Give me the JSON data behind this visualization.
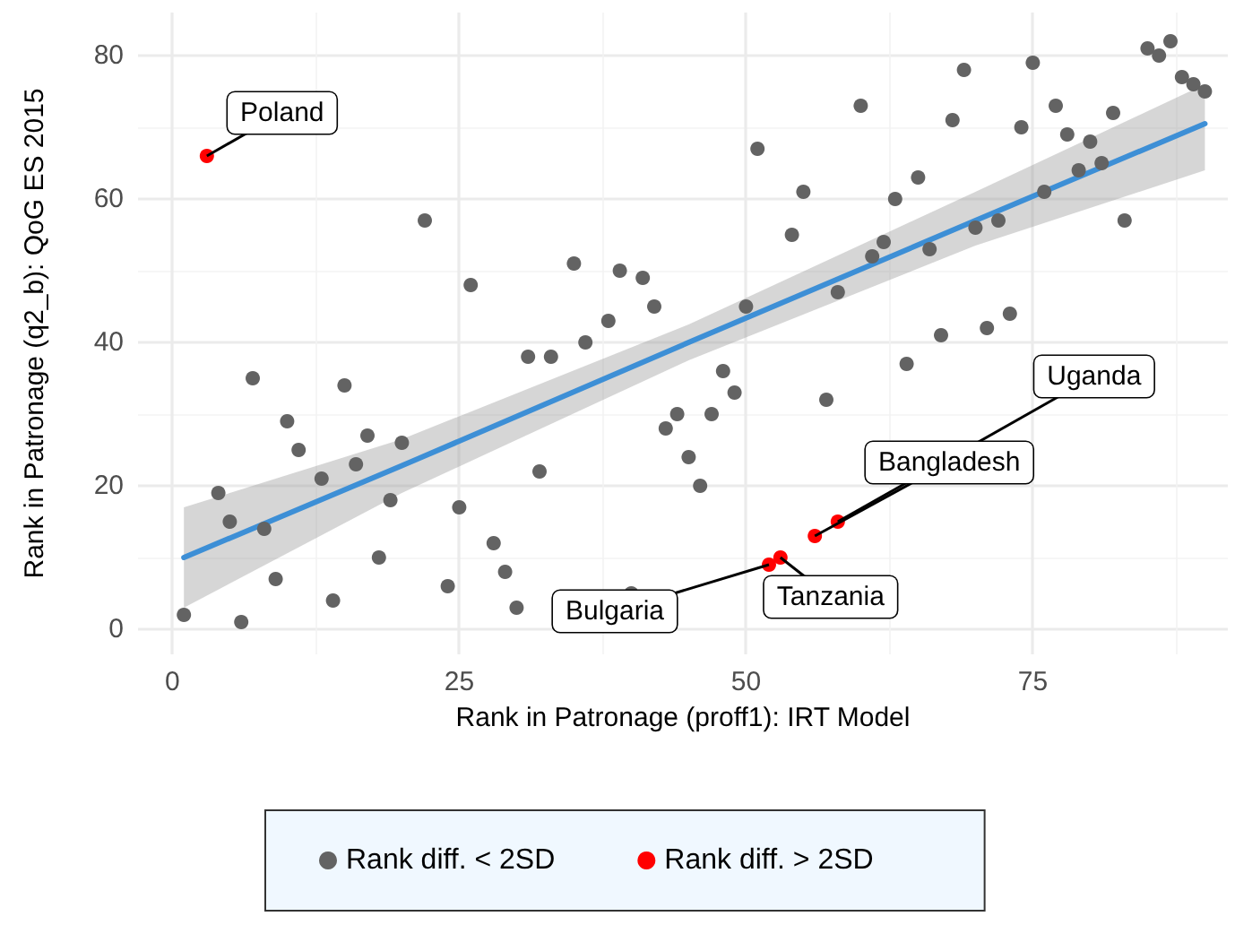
{
  "chart_data": {
    "type": "scatter",
    "xlabel": "Rank in Patronage (proff1): IRT Model",
    "ylabel": "Rank in Patronage (q2_b): QoG ES 2015",
    "xlim": [
      -3,
      92
    ],
    "ylim": [
      -3.5,
      86
    ],
    "xticks": [
      0,
      25,
      50,
      75
    ],
    "yticks": [
      0,
      20,
      40,
      60,
      80
    ],
    "grid": true,
    "legend": "bottom",
    "marker": "circle",
    "series": [
      {
        "name": "Rank diff. < 2SD",
        "color": "#636363",
        "x": [
          1,
          4,
          5,
          6,
          7,
          8,
          9,
          10,
          11,
          13,
          14,
          15,
          16,
          17,
          18,
          19,
          20,
          22,
          24,
          25,
          26,
          28,
          29,
          30,
          31,
          32,
          33,
          35,
          36,
          38,
          39,
          40,
          41,
          42,
          43,
          44,
          45,
          46,
          47,
          48,
          49,
          50,
          51,
          54,
          55,
          57,
          58,
          60,
          61,
          62,
          63,
          64,
          65,
          66,
          67,
          68,
          69,
          70,
          71,
          72,
          73,
          74,
          75,
          76,
          77,
          78,
          79,
          80,
          81,
          82,
          83,
          85,
          86,
          87,
          88,
          89,
          90
        ],
        "values": [
          2,
          19,
          15,
          1,
          35,
          14,
          7,
          29,
          25,
          21,
          4,
          34,
          23,
          27,
          10,
          18,
          26,
          57,
          6,
          17,
          48,
          12,
          8,
          3,
          38,
          22,
          38,
          51,
          40,
          43,
          50,
          5,
          49,
          45,
          28,
          30,
          24,
          20,
          30,
          36,
          33,
          45,
          67,
          55,
          61,
          32,
          47,
          73,
          52,
          54,
          60,
          37,
          63,
          53,
          41,
          71,
          78,
          56,
          42,
          57,
          44,
          70,
          79,
          61,
          73,
          69,
          64,
          68,
          65,
          72,
          57,
          81,
          80,
          82,
          77,
          76,
          75
        ]
      },
      {
        "name": "Rank diff. > 2SD",
        "color": "#ff0000",
        "x": [
          3,
          52,
          53,
          56,
          58
        ],
        "values": [
          66,
          9,
          10,
          13,
          15
        ]
      },
      {
        "type": "line",
        "marker": "none",
        "color": "#3d8fd6",
        "x": [
          1,
          20,
          45,
          70,
          90
        ],
        "values": [
          10,
          22.8,
          40,
          57,
          70.5
        ],
        "lower": [
          3,
          19,
          37.5,
          53.5,
          64
        ],
        "upper": [
          17,
          26.5,
          42.5,
          61,
          76
        ]
      }
    ],
    "annotations": [
      {
        "text": "Poland",
        "x": 3,
        "y": 66
      },
      {
        "text": "Bulgaria",
        "x": 52,
        "y": 9
      },
      {
        "text": "Tanzania",
        "x": 53,
        "y": 10
      },
      {
        "text": "Bangladesh",
        "x": 56,
        "y": 13
      },
      {
        "text": "Uganda",
        "x": 58,
        "y": 15
      }
    ]
  }
}
